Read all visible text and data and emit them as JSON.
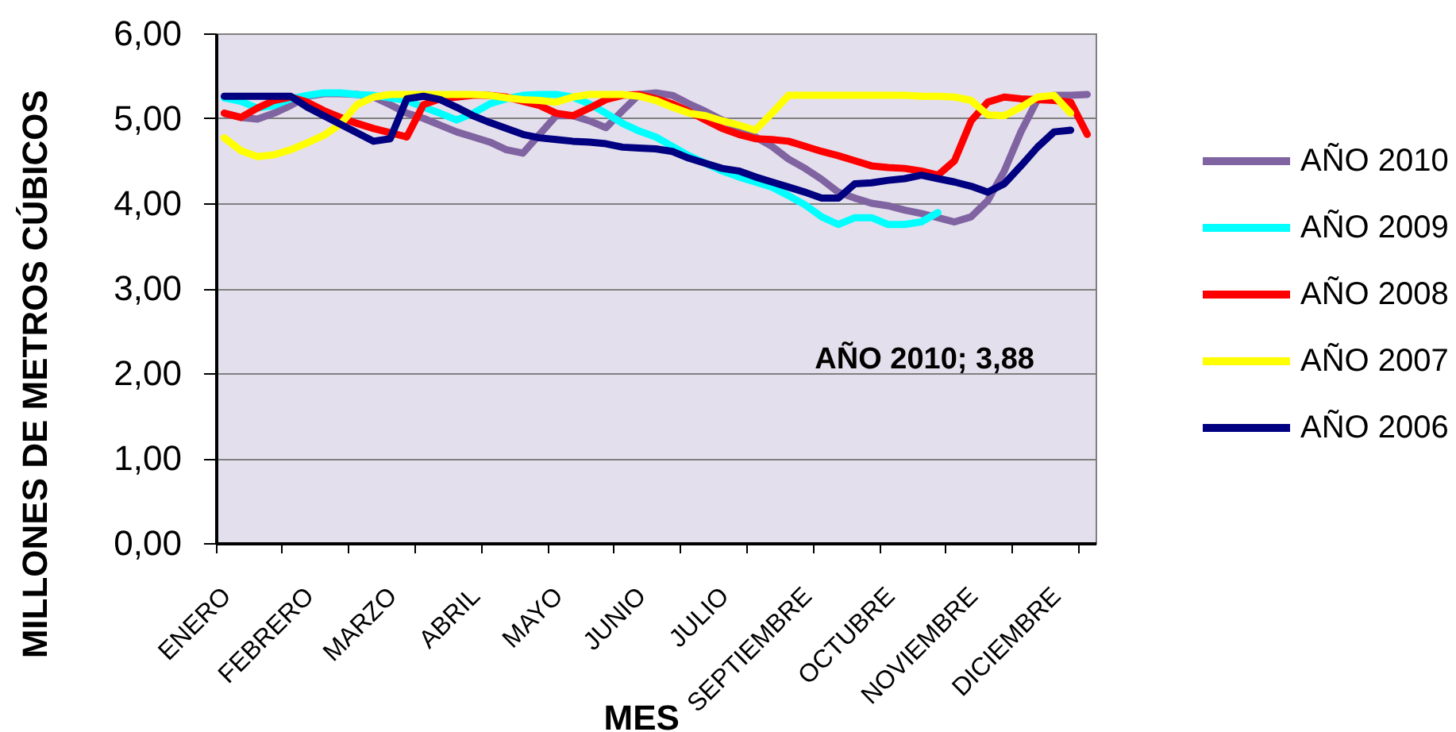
{
  "chart_data": {
    "type": "line",
    "xlabel": "MES",
    "ylabel": "MILLONES DE METROS CÚBICOS",
    "categories": [
      "ENERO",
      null,
      null,
      null,
      null,
      "FEBRERO",
      null,
      null,
      null,
      null,
      "MARZO",
      null,
      null,
      null,
      null,
      "ABRIL",
      null,
      null,
      null,
      null,
      "MAYO",
      null,
      null,
      null,
      null,
      "JUNIO",
      null,
      null,
      null,
      null,
      "JULIO",
      null,
      null,
      null,
      null,
      "SEPTIEMBRE",
      null,
      null,
      null,
      null,
      "OCTUBRE",
      null,
      null,
      null,
      null,
      "NOVIEMBRE",
      null,
      null,
      null,
      null,
      "DICIEMBRE",
      null,
      null
    ],
    "series": [
      {
        "name": "AÑO 2010",
        "color": "#8064a2",
        "values": [
          5.06,
          5.01,
          4.99,
          5.06,
          5.15,
          5.26,
          5.29,
          5.29,
          5.28,
          5.25,
          5.16,
          5.06,
          5.0,
          4.92,
          4.84,
          4.78,
          4.72,
          4.63,
          4.59,
          4.81,
          5.03,
          5.03,
          4.97,
          4.89,
          5.09,
          5.28,
          5.3,
          5.27,
          5.17,
          5.08,
          4.98,
          4.89,
          4.78,
          4.67,
          4.52,
          4.41,
          4.28,
          4.13,
          4.06,
          4.0,
          3.97,
          3.92,
          3.88,
          3.83,
          3.78,
          3.84,
          4.03,
          4.38,
          4.84,
          5.22,
          5.27,
          5.27,
          5.28
        ]
      },
      {
        "name": "AÑO 2009",
        "color": "#00ffff",
        "values": [
          5.24,
          5.2,
          5.12,
          5.15,
          5.23,
          5.27,
          5.3,
          5.3,
          5.28,
          5.27,
          5.24,
          5.21,
          5.13,
          5.06,
          4.98,
          5.06,
          5.17,
          5.23,
          5.27,
          5.28,
          5.28,
          5.25,
          5.17,
          5.06,
          4.94,
          4.85,
          4.78,
          4.67,
          4.56,
          4.47,
          4.38,
          4.31,
          4.25,
          4.19,
          4.09,
          3.98,
          3.84,
          3.75,
          3.83,
          3.83,
          3.75,
          3.75,
          3.78,
          3.89,
          null,
          null,
          null,
          null,
          null,
          null,
          null,
          null,
          null
        ]
      },
      {
        "name": "AÑO 2008",
        "color": "#ff0000",
        "values": [
          5.06,
          5.01,
          5.12,
          5.21,
          5.25,
          5.19,
          5.09,
          5.01,
          4.94,
          4.88,
          4.83,
          4.78,
          5.16,
          5.23,
          5.25,
          5.27,
          5.27,
          5.25,
          5.2,
          5.15,
          5.06,
          5.03,
          5.12,
          5.22,
          5.27,
          5.28,
          5.23,
          5.17,
          5.08,
          4.98,
          4.88,
          4.81,
          4.76,
          4.75,
          4.73,
          4.67,
          4.61,
          4.56,
          4.5,
          4.44,
          4.42,
          4.41,
          4.38,
          4.33,
          4.5,
          4.97,
          5.19,
          5.25,
          5.23,
          5.22,
          5.21,
          5.19,
          4.81
        ]
      },
      {
        "name": "AÑO 2007",
        "color": "#ffff00",
        "values": [
          4.77,
          4.62,
          4.55,
          4.57,
          4.63,
          4.71,
          4.8,
          4.93,
          5.16,
          5.25,
          5.28,
          5.28,
          5.28,
          5.28,
          5.28,
          5.28,
          5.27,
          5.24,
          5.22,
          5.21,
          5.19,
          5.25,
          5.28,
          5.28,
          5.28,
          5.26,
          5.21,
          5.13,
          5.06,
          5.03,
          4.97,
          4.92,
          4.86,
          5.06,
          5.27,
          5.27,
          5.27,
          5.27,
          5.27,
          5.27,
          5.27,
          5.27,
          5.26,
          5.26,
          5.25,
          5.21,
          5.04,
          5.03,
          5.13,
          5.25,
          5.27,
          5.06,
          null
        ]
      },
      {
        "name": "AÑO 2006",
        "color": "#000080",
        "values": [
          5.26,
          5.26,
          5.26,
          5.26,
          5.26,
          5.13,
          5.03,
          4.93,
          4.83,
          4.73,
          4.76,
          5.23,
          5.26,
          5.22,
          5.13,
          5.03,
          4.95,
          4.88,
          4.81,
          4.77,
          4.75,
          4.73,
          4.72,
          4.7,
          4.66,
          4.65,
          4.64,
          4.61,
          4.53,
          4.47,
          4.41,
          4.38,
          4.31,
          4.25,
          4.19,
          4.13,
          4.06,
          4.06,
          4.23,
          4.24,
          4.27,
          4.29,
          4.33,
          4.29,
          4.25,
          4.2,
          4.13,
          4.23,
          4.44,
          4.66,
          4.84,
          4.86,
          null
        ]
      }
    ],
    "ylim": [
      0,
      6
    ],
    "yticks": [
      {
        "value": 0,
        "label": "0,00"
      },
      {
        "value": 1,
        "label": "1,00"
      },
      {
        "value": 2,
        "label": "2,00"
      },
      {
        "value": 3,
        "label": "3,00"
      },
      {
        "value": 4,
        "label": "4,00"
      },
      {
        "value": 5,
        "label": "5,00"
      },
      {
        "value": 6,
        "label": "6,00"
      }
    ],
    "grid": "y",
    "legend": "right",
    "line_style": "solid",
    "annotations": [
      "AÑO 2010; 3,88"
    ]
  }
}
